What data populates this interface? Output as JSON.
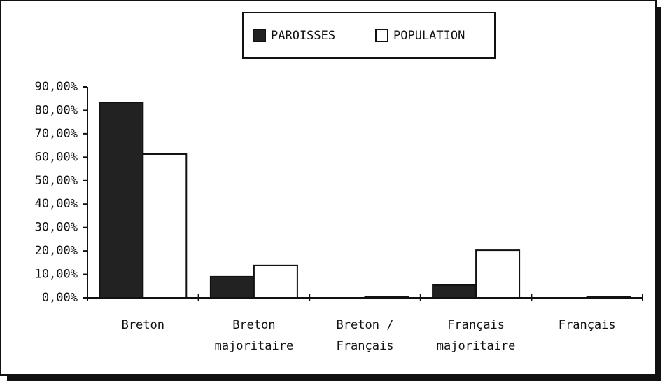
{
  "chart_data": {
    "type": "bar",
    "categories": [
      "Breton",
      "Breton\nmajoritaire",
      "Breton /\nFrançais",
      "Français\nmajoritaire",
      "Français"
    ],
    "series": [
      {
        "name": "PAROISSES",
        "color": "#222222",
        "values": [
          83.4,
          9.0,
          0,
          5.4,
          0
        ]
      },
      {
        "name": "POPULATION",
        "color": "#ffffff",
        "values": [
          61.3,
          13.8,
          0.5,
          20.3,
          0.5
        ]
      }
    ],
    "ylim": [
      0,
      90
    ],
    "yticks": [
      {
        "value": 0,
        "label": "0,00%"
      },
      {
        "value": 10,
        "label": "10,00%"
      },
      {
        "value": 20,
        "label": "20,00%"
      },
      {
        "value": 30,
        "label": "30,00%"
      },
      {
        "value": 40,
        "label": "40,00%"
      },
      {
        "value": 50,
        "label": "50,00%"
      },
      {
        "value": 60,
        "label": "60,00%"
      },
      {
        "value": 70,
        "label": "70,00%"
      },
      {
        "value": 80,
        "label": "80,00%"
      },
      {
        "value": 90,
        "label": "90,00%"
      }
    ],
    "legend": "top"
  }
}
